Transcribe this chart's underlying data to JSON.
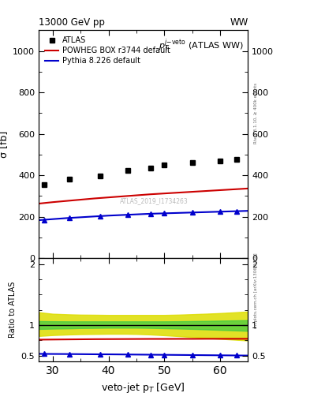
{
  "title_left": "13000 GeV pp",
  "title_right": "WW",
  "main_title": "$p_T^{j\\text{-veto}}$ (ATLAS WW)",
  "ylabel_main": "σ [fb]",
  "ylabel_ratio": "Ratio to ATLAS",
  "xlabel": "veto-jet p$_T$ [GeV]",
  "rivet_label": "Rivet 3.1.10, ≥ 400k events",
  "mcplots_label": "mcplots.cern.ch [arXiv:1306.3436]",
  "watermark": "ATLAS_2019_I1734263",
  "atlas_x_pts": [
    28.5,
    33.0,
    38.5,
    43.5,
    47.5,
    50.0,
    55.0,
    60.0,
    63.0
  ],
  "atlas_y": [
    355,
    380,
    395,
    425,
    435,
    450,
    460,
    470,
    475
  ],
  "powheg_x": [
    27.5,
    30,
    32.5,
    35,
    37.5,
    40,
    42.5,
    45,
    47.5,
    50,
    52.5,
    55,
    57.5,
    60,
    62.5,
    65
  ],
  "powheg_y": [
    263,
    270,
    276,
    282,
    288,
    293,
    298,
    303,
    308,
    312,
    316,
    320,
    324,
    328,
    332,
    336
  ],
  "pythia_x": [
    27.5,
    30,
    32.5,
    35,
    37.5,
    40,
    42.5,
    45,
    47.5,
    50,
    52.5,
    55,
    57.5,
    60,
    62.5,
    65
  ],
  "pythia_y": [
    183,
    188,
    193,
    197,
    201,
    205,
    208,
    211,
    214,
    216,
    218,
    220,
    222,
    224,
    226,
    228
  ],
  "pythia_marker_x": [
    28.5,
    33.0,
    38.5,
    43.5,
    47.5,
    50.0,
    55.0,
    60.0,
    63.0
  ],
  "pythia_marker_y": [
    183,
    193,
    201,
    208,
    214,
    216,
    220,
    224,
    226
  ],
  "ratio_powheg_x": [
    27.5,
    30,
    32.5,
    35,
    37.5,
    40,
    42.5,
    45,
    47.5,
    50,
    52.5,
    55,
    57.5,
    60,
    62.5,
    65
  ],
  "ratio_powheg_y": [
    0.76,
    0.762,
    0.764,
    0.766,
    0.768,
    0.769,
    0.77,
    0.771,
    0.772,
    0.772,
    0.773,
    0.773,
    0.774,
    0.774,
    0.774,
    0.774
  ],
  "ratio_pythia_x": [
    27.5,
    30,
    32.5,
    35,
    37.5,
    40,
    42.5,
    45,
    47.5,
    50,
    52.5,
    55,
    57.5,
    60,
    62.5,
    65
  ],
  "ratio_pythia_y": [
    0.527,
    0.525,
    0.524,
    0.522,
    0.52,
    0.519,
    0.517,
    0.515,
    0.513,
    0.511,
    0.509,
    0.507,
    0.505,
    0.503,
    0.501,
    0.499
  ],
  "pythia_ratio_marker_x": [
    28.5,
    33.0,
    38.5,
    43.5,
    47.5,
    50.0,
    55.0,
    60.0,
    63.0
  ],
  "pythia_ratio_marker_y": [
    0.527,
    0.524,
    0.52,
    0.517,
    0.513,
    0.511,
    0.507,
    0.503,
    0.501
  ],
  "band_x": [
    27.5,
    30,
    33,
    35,
    37.5,
    40,
    43,
    45,
    47.5,
    50,
    52.5,
    55,
    57.5,
    60,
    62.5,
    65
  ],
  "green_lo": [
    0.935,
    0.94,
    0.945,
    0.95,
    0.952,
    0.955,
    0.955,
    0.955,
    0.952,
    0.947,
    0.942,
    0.936,
    0.928,
    0.92,
    0.912,
    0.904
  ],
  "green_hi": [
    1.065,
    1.062,
    1.06,
    1.06,
    1.06,
    1.06,
    1.06,
    1.06,
    1.06,
    1.06,
    1.062,
    1.065,
    1.068,
    1.072,
    1.076,
    1.08
  ],
  "yellow_lo": [
    0.82,
    0.835,
    0.845,
    0.85,
    0.853,
    0.856,
    0.856,
    0.853,
    0.845,
    0.832,
    0.818,
    0.802,
    0.788,
    0.774,
    0.76,
    0.746
  ],
  "yellow_hi": [
    1.21,
    1.185,
    1.175,
    1.17,
    1.168,
    1.165,
    1.165,
    1.165,
    1.165,
    1.165,
    1.17,
    1.178,
    1.186,
    1.196,
    1.208,
    1.222
  ],
  "xlim": [
    27.5,
    65.0
  ],
  "ylim_main": [
    0,
    1100
  ],
  "ylim_ratio": [
    0.4,
    2.1
  ],
  "yticks_main": [
    0,
    200,
    400,
    600,
    800,
    1000
  ],
  "ytick_labels_main": [
    "0",
    "200",
    "400",
    "600",
    "800",
    "1000"
  ],
  "yticks_ratio": [
    0.5,
    1.0,
    2.0
  ],
  "xticks": [
    30,
    40,
    50,
    60
  ],
  "color_atlas": "#000000",
  "color_powheg": "#cc0000",
  "color_pythia": "#0000cc",
  "color_green": "#44cc44",
  "color_yellow": "#dddd00",
  "bg_color": "#ffffff"
}
